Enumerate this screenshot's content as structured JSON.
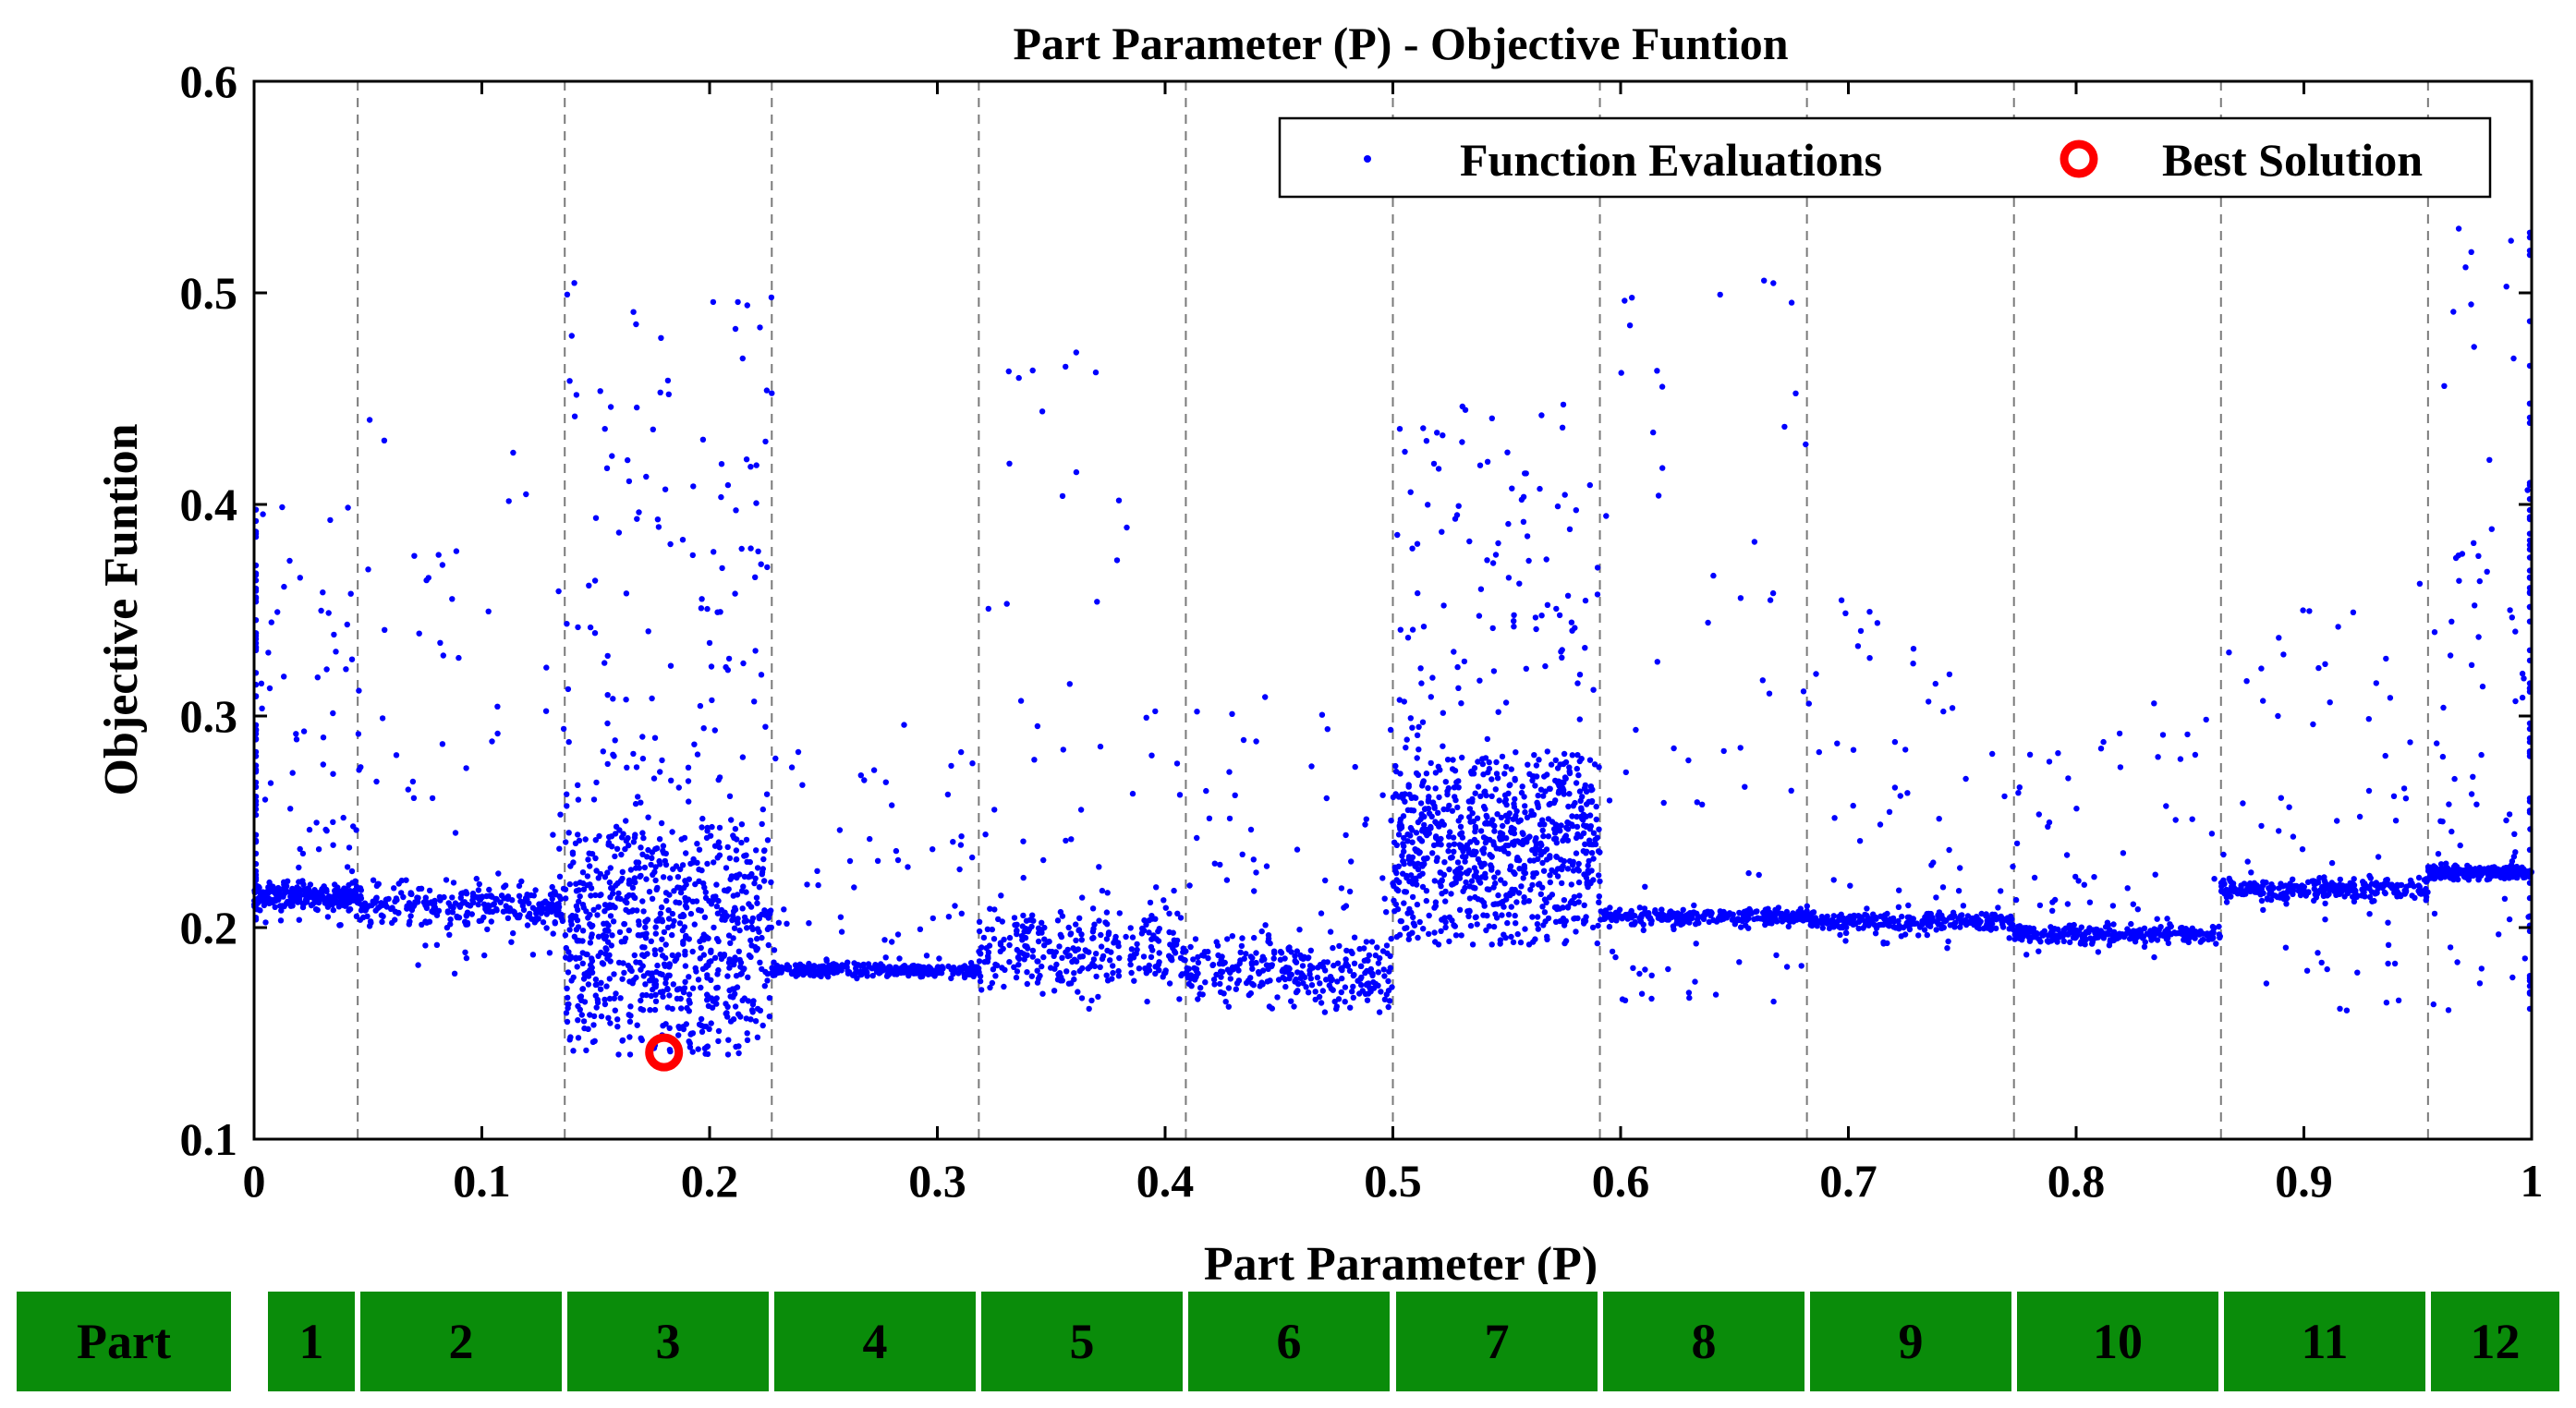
{
  "chart_data": {
    "type": "scatter",
    "title": "Part Parameter (P) - Objective Funtion",
    "xlabel": "Part Parameter (P)",
    "ylabel": "Objective Funtion",
    "xlim": [
      0,
      1
    ],
    "ylim": [
      0.1,
      0.6
    ],
    "x_ticks": [
      0,
      0.1,
      0.2,
      0.3,
      0.4,
      0.5,
      0.6,
      0.7,
      0.8,
      0.9,
      1
    ],
    "x_tick_labels": [
      "0",
      "0.1",
      "0.2",
      "0.3",
      "0.4",
      "0.5",
      "0.6",
      "0.7",
      "0.8",
      "0.9",
      "1"
    ],
    "y_ticks": [
      0.1,
      0.2,
      0.3,
      0.4,
      0.5,
      0.6
    ],
    "y_tick_labels": [
      "0.1",
      "0.2",
      "0.3",
      "0.4",
      "0.5",
      "0.6"
    ],
    "grid": "vertical dashed lines at part boundaries",
    "part_boundaries": [
      0.0455,
      0.1364,
      0.2273,
      0.3182,
      0.4091,
      0.5,
      0.5909,
      0.6818,
      0.7727,
      0.8636,
      0.9545
    ],
    "legend": {
      "placement": "top-right",
      "entries": [
        "Function Evaluations",
        "Best Solution"
      ]
    },
    "series": [
      {
        "name": "Function Evaluations",
        "marker": "dot",
        "color": "#0000ff",
        "regions": [
          {
            "part": 1,
            "x": [
              0,
              0.0455
            ],
            "band_center": 0.215,
            "band_spread": 0.006,
            "min": 0.2,
            "max": 0.4
          },
          {
            "part": 2,
            "x": [
              0.0455,
              0.1364
            ],
            "band_center": 0.21,
            "band_spread": 0.01,
            "min": 0.175,
            "max": 0.45
          },
          {
            "part": 3,
            "x": [
              0.1364,
              0.2273
            ],
            "band_center": 0.2,
            "band_spread": 0.05,
            "min": 0.14,
            "max": 0.505
          },
          {
            "part": 4,
            "x": [
              0.2273,
              0.3182
            ],
            "band_center": 0.18,
            "band_spread": 0.003,
            "min": 0.176,
            "max": 0.3
          },
          {
            "part": 5,
            "x": [
              0.3182,
              0.4091
            ],
            "band_center": 0.19,
            "band_spread": 0.02,
            "min": 0.16,
            "max": 0.478
          },
          {
            "part": 6,
            "x": [
              0.4091,
              0.5
            ],
            "band_center": 0.18,
            "band_spread": 0.015,
            "min": 0.16,
            "max": 0.31
          },
          {
            "part": 7,
            "x": [
              0.5,
              0.5909
            ],
            "band_center": 0.24,
            "band_spread": 0.04,
            "min": 0.192,
            "max": 0.45
          },
          {
            "part": 8,
            "x": [
              0.5909,
              0.6818
            ],
            "band_center": 0.205,
            "band_spread": 0.004,
            "min": 0.165,
            "max": 0.535
          },
          {
            "part": 9,
            "x": [
              0.6818,
              0.7727
            ],
            "band_center": 0.203,
            "band_spread": 0.004,
            "min": 0.19,
            "max": 0.36
          },
          {
            "part": 10,
            "x": [
              0.7727,
              0.8636
            ],
            "band_center": 0.197,
            "band_spread": 0.004,
            "min": 0.185,
            "max": 0.31
          },
          {
            "part": 11,
            "x": [
              0.8636,
              0.9545
            ],
            "band_center": 0.218,
            "band_spread": 0.005,
            "min": 0.16,
            "max": 0.365
          },
          {
            "part": 12,
            "x": [
              0.9545,
              1
            ],
            "band_center": 0.226,
            "band_spread": 0.003,
            "min": 0.155,
            "max": 0.54
          }
        ]
      },
      {
        "name": "Best Solution",
        "marker": "circle",
        "color": "#ff0000",
        "x": [
          0.18
        ],
        "y": [
          0.141
        ]
      }
    ]
  },
  "parts": {
    "label": "Part",
    "items": [
      "1",
      "2",
      "3",
      "4",
      "5",
      "6",
      "7",
      "8",
      "9",
      "10",
      "11",
      "12"
    ]
  }
}
